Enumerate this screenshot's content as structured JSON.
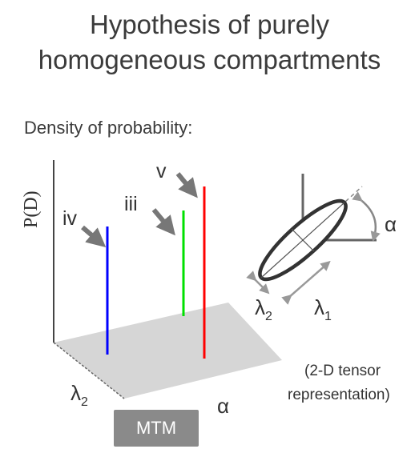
{
  "title_line1": "Hypothesis of purely",
  "title_line2": "homogeneous compartments",
  "subtitle": "Density of probability:",
  "y_axis_label": "P(D)",
  "labels": {
    "iv": "iv",
    "iii": "iii",
    "v": "v",
    "lambda": "λ",
    "sub_1": "1",
    "sub_2": "2",
    "alpha": "α",
    "tensor_line1": "(2-D tensor",
    "tensor_line2": "representation)"
  },
  "button": "MTM",
  "colors": {
    "iv_line": "#0000ff",
    "iii_line": "#00e000",
    "v_line": "#ff0000",
    "plane": "#d6d6d6",
    "arrow": "#777777"
  }
}
